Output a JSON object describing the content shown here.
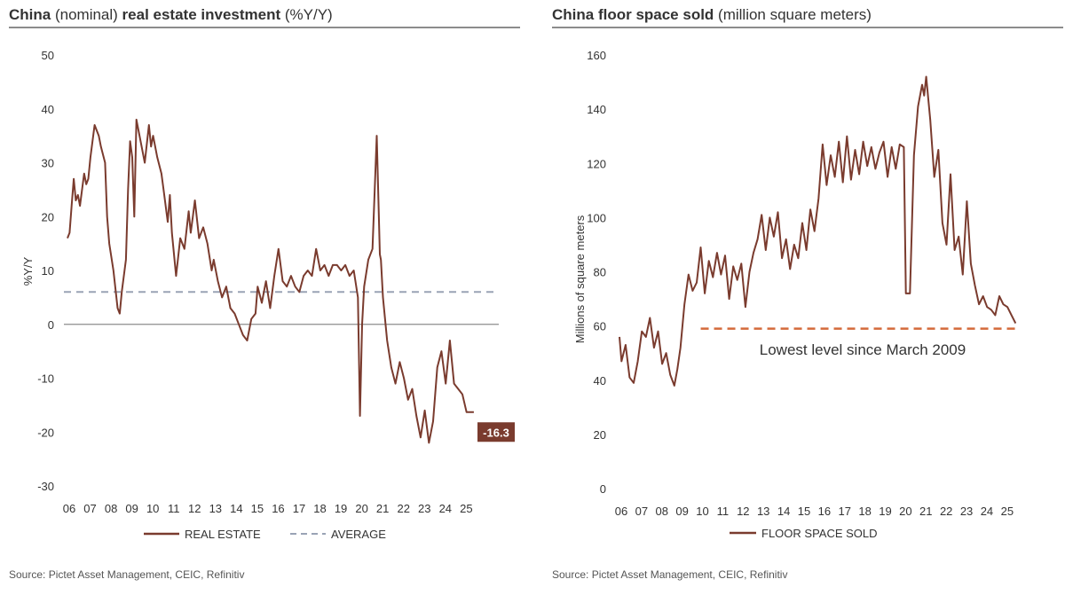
{
  "colors": {
    "series": "#7a3b2e",
    "average": "#9aa3b5",
    "lowest": "#d46a3a",
    "rule": "#8c8c8c",
    "text": "#333333",
    "zero": "#8c8c8c"
  },
  "chart_data": [
    {
      "type": "line",
      "title_bold_1": "China",
      "title_normal_1": " (nominal) ",
      "title_bold_2": "real estate investment",
      "title_normal_2": " (%Y/Y)",
      "ylabel": "%Y/Y",
      "xlabel": "",
      "ylim": [
        -30,
        50
      ],
      "yticks": [
        -30,
        -20,
        -10,
        0,
        10,
        20,
        30,
        40,
        50
      ],
      "x_range": [
        2006,
        2025.75
      ],
      "x_tick_positions": [
        2006,
        2007,
        2008,
        2009,
        2010,
        2011,
        2012,
        2013,
        2014,
        2015,
        2016,
        2017,
        2018,
        2019,
        2020,
        2021,
        2022,
        2023,
        2024,
        2025
      ],
      "x_tick_labels": [
        "06",
        "07",
        "08",
        "09",
        "10",
        "11",
        "12",
        "13",
        "14",
        "15",
        "16",
        "17",
        "18",
        "19",
        "20",
        "21",
        "22",
        "23",
        "24",
        "25"
      ],
      "series": [
        {
          "name": "REAL ESTATE",
          "x": [
            2006.0,
            2006.1,
            2006.2,
            2006.3,
            2006.4,
            2006.5,
            2006.6,
            2006.8,
            2006.9,
            2007.0,
            2007.1,
            2007.3,
            2007.5,
            2007.6,
            2007.8,
            2007.9,
            2008.0,
            2008.2,
            2008.4,
            2008.5,
            2008.6,
            2008.8,
            2008.9,
            2009.0,
            2009.1,
            2009.2,
            2009.3,
            2009.5,
            2009.7,
            2009.9,
            2010.0,
            2010.1,
            2010.3,
            2010.5,
            2010.6,
            2010.8,
            2010.9,
            2011.0,
            2011.2,
            2011.4,
            2011.6,
            2011.8,
            2011.9,
            2012.0,
            2012.1,
            2012.3,
            2012.5,
            2012.7,
            2012.9,
            2013.0,
            2013.2,
            2013.4,
            2013.6,
            2013.8,
            2014.0,
            2014.2,
            2014.4,
            2014.6,
            2014.8,
            2015.0,
            2015.1,
            2015.3,
            2015.5,
            2015.7,
            2015.9,
            2016.1,
            2016.3,
            2016.5,
            2016.7,
            2016.9,
            2017.1,
            2017.3,
            2017.5,
            2017.7,
            2017.9,
            2018.1,
            2018.3,
            2018.5,
            2018.7,
            2018.9,
            2019.1,
            2019.3,
            2019.5,
            2019.7,
            2019.9,
            2020.0,
            2020.1,
            2020.2,
            2020.4,
            2020.6,
            2020.8,
            2020.95,
            2021.0,
            2021.1,
            2021.3,
            2021.5,
            2021.7,
            2021.9,
            2022.1,
            2022.3,
            2022.5,
            2022.7,
            2022.9,
            2023.1,
            2023.3,
            2023.5,
            2023.7,
            2023.9,
            2024.1,
            2024.3,
            2024.5,
            2024.7,
            2024.9,
            2025.1,
            2025.3,
            2025.45
          ],
          "values": [
            16,
            17,
            22,
            27,
            23,
            24,
            22,
            28,
            26,
            27,
            31,
            37,
            35,
            33,
            30,
            20,
            15,
            10,
            3,
            2,
            6,
            12,
            25,
            34,
            31,
            20,
            38,
            34,
            30,
            37,
            33,
            35,
            31,
            28,
            25,
            19,
            24,
            17,
            9,
            16,
            14,
            21,
            17,
            20,
            23,
            16,
            18,
            15,
            10,
            12,
            8,
            5,
            7,
            3,
            2,
            0,
            -2,
            -3,
            1,
            2,
            7,
            4,
            8,
            3,
            9,
            14,
            8,
            7,
            9,
            7,
            6,
            9,
            10,
            9,
            14,
            10,
            11,
            9,
            11,
            11,
            10,
            11,
            9,
            10,
            5,
            -17,
            0,
            7,
            12,
            14,
            35,
            13,
            12,
            5,
            -3,
            -8,
            -11,
            -7,
            -10,
            -14,
            -12,
            -17,
            -21,
            -16,
            -22,
            -18,
            -8,
            -5,
            -11,
            -3,
            -11,
            -12,
            -13,
            -16.3,
            -16.3,
            -16.3
          ]
        },
        {
          "name": "AVERAGE",
          "value": 6
        }
      ],
      "last_value_label": "-16.3",
      "legend": [
        "REAL ESTATE",
        "AVERAGE"
      ],
      "legend_position": "bottom-center",
      "source": "Source: Pictet Asset Management, CEIC, Refinitiv"
    },
    {
      "type": "line",
      "title_bold_1": "China floor space sold",
      "title_normal_1": " (million square meters)",
      "ylabel": "Millions  of square meters",
      "xlabel": "",
      "ylim": [
        0,
        160
      ],
      "yticks": [
        0,
        20,
        40,
        60,
        80,
        100,
        120,
        140,
        160
      ],
      "x_range": [
        2006,
        2025.75
      ],
      "x_tick_positions": [
        2006,
        2007,
        2008,
        2009,
        2010,
        2011,
        2012,
        2013,
        2014,
        2015,
        2016,
        2017,
        2018,
        2019,
        2020,
        2021,
        2022,
        2023,
        2024,
        2025
      ],
      "x_tick_labels": [
        "06",
        "07",
        "08",
        "09",
        "10",
        "11",
        "12",
        "13",
        "14",
        "15",
        "16",
        "17",
        "18",
        "19",
        "20",
        "21",
        "22",
        "23",
        "24",
        "25"
      ],
      "series": [
        {
          "name": "FLOOR SPACE SOLD",
          "x": [
            2006.0,
            2006.1,
            2006.3,
            2006.5,
            2006.7,
            2006.9,
            2007.1,
            2007.3,
            2007.5,
            2007.7,
            2007.9,
            2008.1,
            2008.3,
            2008.5,
            2008.7,
            2008.85,
            2009.0,
            2009.2,
            2009.4,
            2009.6,
            2009.8,
            2010.0,
            2010.2,
            2010.4,
            2010.6,
            2010.8,
            2011.0,
            2011.2,
            2011.4,
            2011.6,
            2011.8,
            2012.0,
            2012.2,
            2012.4,
            2012.6,
            2012.8,
            2013.0,
            2013.2,
            2013.4,
            2013.6,
            2013.8,
            2014.0,
            2014.2,
            2014.4,
            2014.6,
            2014.8,
            2015.0,
            2015.2,
            2015.4,
            2015.6,
            2015.8,
            2016.0,
            2016.2,
            2016.4,
            2016.6,
            2016.8,
            2017.0,
            2017.2,
            2017.4,
            2017.6,
            2017.8,
            2018.0,
            2018.2,
            2018.4,
            2018.6,
            2018.8,
            2019.0,
            2019.2,
            2019.4,
            2019.6,
            2019.8,
            2020.0,
            2020.1,
            2020.3,
            2020.5,
            2020.7,
            2020.9,
            2021.0,
            2021.1,
            2021.3,
            2021.5,
            2021.7,
            2021.9,
            2022.1,
            2022.3,
            2022.5,
            2022.7,
            2022.9,
            2023.1,
            2023.3,
            2023.5,
            2023.7,
            2023.9,
            2024.1,
            2024.3,
            2024.5,
            2024.7,
            2024.9,
            2025.1,
            2025.3,
            2025.5
          ],
          "values": [
            56,
            47,
            53,
            41,
            39,
            47,
            58,
            56,
            63,
            52,
            58,
            46,
            50,
            42,
            38,
            44,
            52,
            68,
            79,
            73,
            76,
            89,
            72,
            84,
            78,
            87,
            79,
            86,
            70,
            82,
            77,
            83,
            67,
            80,
            87,
            92,
            101,
            88,
            100,
            93,
            102,
            85,
            92,
            81,
            90,
            85,
            98,
            88,
            103,
            95,
            107,
            127,
            112,
            123,
            115,
            128,
            113,
            130,
            114,
            125,
            116,
            128,
            119,
            126,
            118,
            124,
            128,
            115,
            126,
            118,
            127,
            126,
            72,
            72,
            123,
            141,
            149,
            145,
            152,
            136,
            115,
            125,
            98,
            90,
            116,
            88,
            93,
            79,
            106,
            83,
            75,
            68,
            71,
            67,
            66,
            64,
            71,
            68,
            67,
            64,
            61
          ]
        }
      ],
      "reference_line": {
        "value": 59,
        "x_start": 2010.0,
        "x_end": 2025.7
      },
      "annotation": "Lowest level since March 2009",
      "legend": [
        "FLOOR SPACE SOLD"
      ],
      "legend_position": "bottom-center",
      "source": "Source: Pictet Asset Management, CEIC, Refinitiv"
    }
  ]
}
